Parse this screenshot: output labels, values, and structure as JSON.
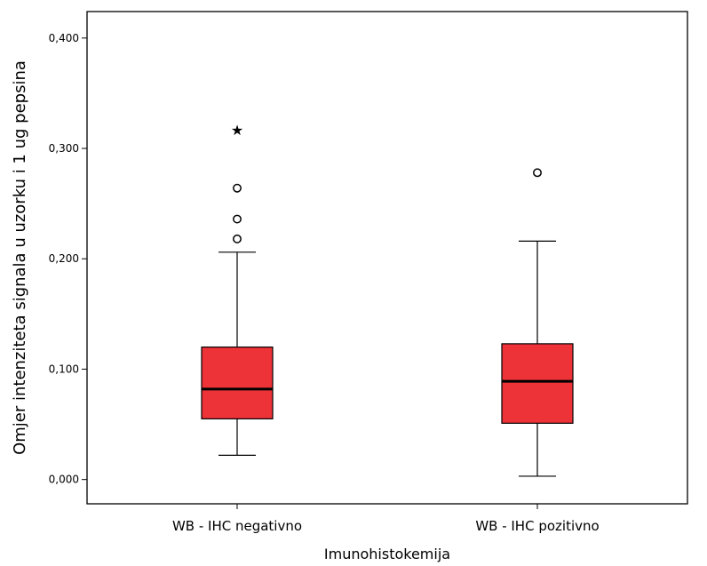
{
  "chart_data": {
    "type": "box",
    "xlabel": "Imunohistokemija",
    "ylabel": "Omjer intenziteta signala u uzorku i 1 ug pepsina",
    "ylim": [
      -0.022,
      0.424
    ],
    "yticks": [
      0.0,
      0.1,
      0.2,
      0.3,
      0.4
    ],
    "ytick_labels": [
      "0,000",
      "0,100",
      "0,200",
      "0,300",
      "0,400"
    ],
    "grid": false,
    "box_color": "#ee3338",
    "categories": [
      "WB - IHC negativno",
      "WB - IHC pozitivno"
    ],
    "boxes": [
      {
        "category": "WB - IHC negativno",
        "whisker_low": 0.022,
        "q1": 0.055,
        "median": 0.082,
        "q3": 0.12,
        "whisker_high": 0.206,
        "outliers": [
          0.218,
          0.236,
          0.264
        ],
        "extremes": [
          0.317
        ]
      },
      {
        "category": "WB - IHC pozitivno",
        "whisker_low": 0.003,
        "q1": 0.051,
        "median": 0.089,
        "q3": 0.123,
        "whisker_high": 0.216,
        "outliers": [
          0.278
        ],
        "extremes": []
      }
    ]
  }
}
